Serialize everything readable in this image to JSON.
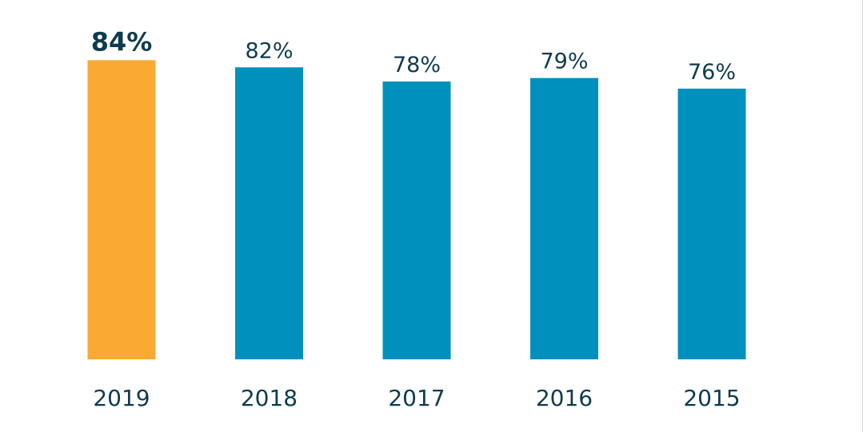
{
  "chart_data": {
    "type": "bar",
    "categories": [
      "2019",
      "2018",
      "2017",
      "2016",
      "2015"
    ],
    "values": [
      84,
      82,
      78,
      79,
      76
    ],
    "value_labels": [
      "84%",
      "82%",
      "78%",
      "79%",
      "76%"
    ],
    "highlight_index": 0,
    "ylim": [
      0,
      84
    ],
    "grid": false,
    "colors": {
      "highlight": "#F9AA33",
      "bar": "#0090BE",
      "text": "#0D3B4F"
    }
  }
}
